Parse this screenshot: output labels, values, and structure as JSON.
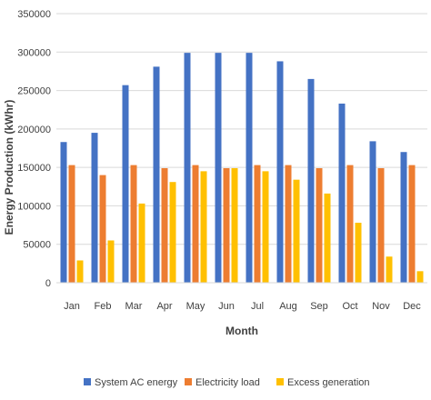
{
  "chart_data": {
    "type": "bar",
    "categories": [
      "Jan",
      "Feb",
      "Mar",
      "Apr",
      "May",
      "Jun",
      "Jul",
      "Aug",
      "Sep",
      "Oct",
      "Nov",
      "Dec"
    ],
    "series": [
      {
        "name": "System AC energy",
        "color": "#4472c4",
        "values": [
          183000,
          195000,
          257000,
          281000,
          299000,
          299000,
          299000,
          288000,
          265000,
          233000,
          184000,
          170000
        ]
      },
      {
        "name": "Electricity load",
        "color": "#ed7d31",
        "values": [
          153000,
          140000,
          153000,
          149000,
          153000,
          149000,
          153000,
          153000,
          149000,
          153000,
          149000,
          153000
        ]
      },
      {
        "name": "Excess generation",
        "color": "#ffc000",
        "values": [
          29000,
          55000,
          103000,
          131000,
          145000,
          149000,
          145000,
          134000,
          116000,
          78000,
          34000,
          15000
        ]
      }
    ],
    "title": "",
    "xlabel": "Month",
    "ylabel": "Energy Production (kWhr)",
    "ylim": [
      0,
      350000
    ],
    "yticks": [
      "0",
      "50000",
      "100000",
      "150000",
      "200000",
      "250000",
      "300000",
      "350000"
    ],
    "ytick_values": [
      0,
      50000,
      100000,
      150000,
      200000,
      250000,
      300000,
      350000
    ],
    "grid": true,
    "legend_position": "bottom"
  }
}
